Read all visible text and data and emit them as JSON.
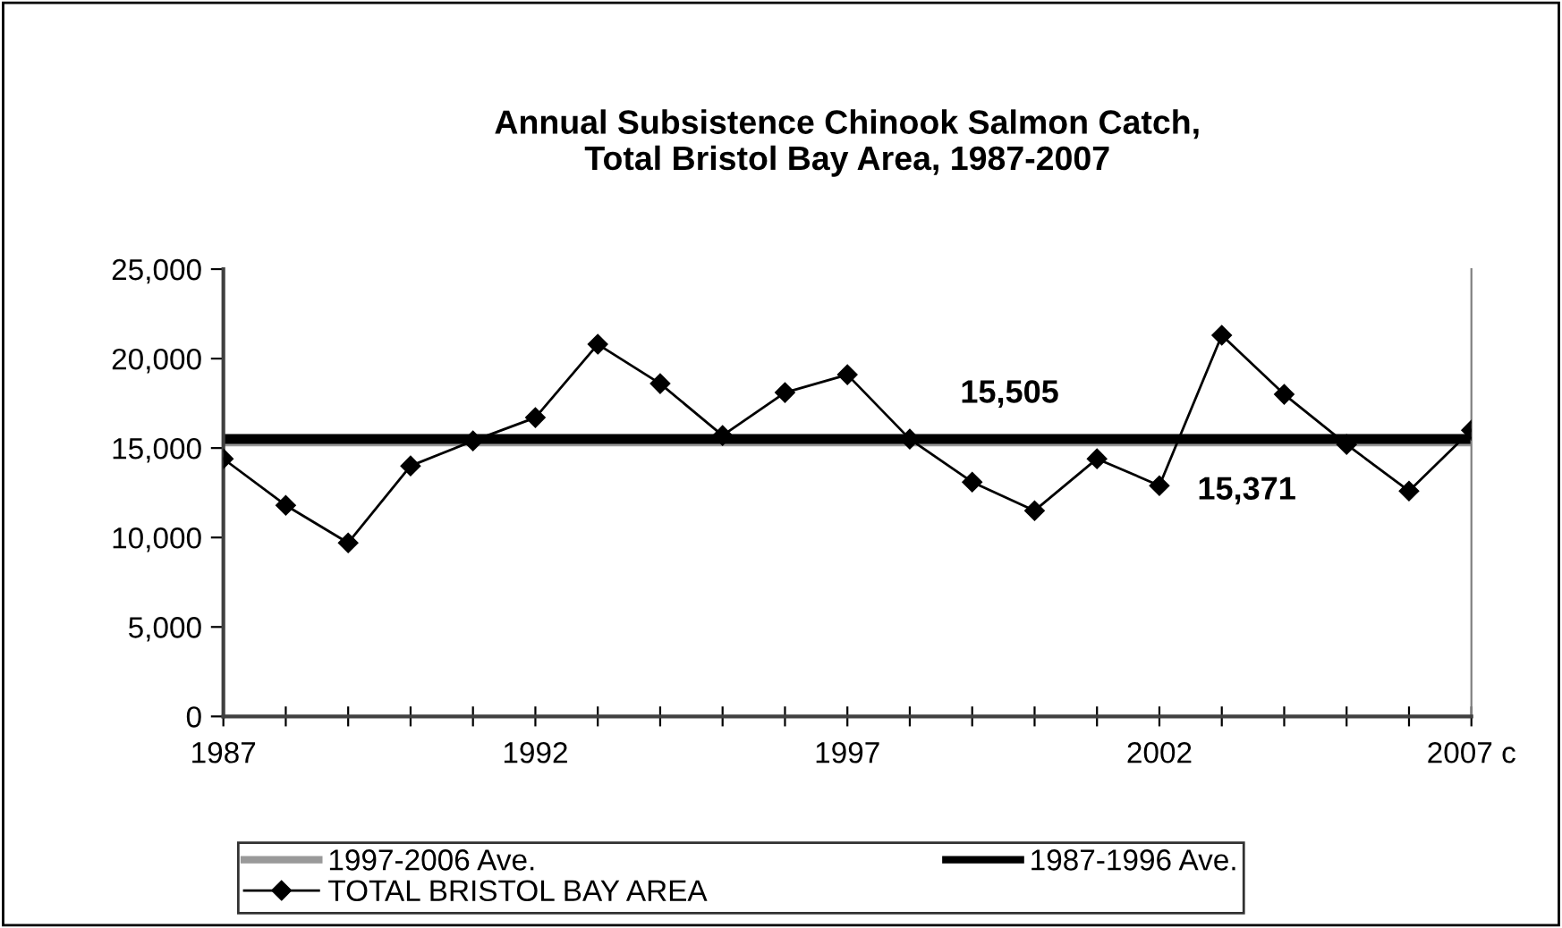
{
  "chart_data": {
    "type": "line",
    "title": "Annual Subsistence Chinook Salmon Catch,\nTotal Bristol Bay Area, 1987-2007",
    "x": [
      1987,
      1988,
      1989,
      1990,
      1991,
      1992,
      1993,
      1994,
      1995,
      1996,
      1997,
      1998,
      1999,
      2000,
      2001,
      2002,
      2003,
      2004,
      2005,
      2006,
      2007
    ],
    "series": [
      {
        "name": "TOTAL BRISTOL BAY AREA",
        "color": "#000000",
        "values": [
          14400,
          11800,
          9700,
          14000,
          15400,
          16700,
          20800,
          18600,
          15700,
          18100,
          19100,
          15500,
          13100,
          11500,
          14400,
          12900,
          21300,
          18000,
          15200,
          12600,
          16000
        ]
      }
    ],
    "ref_lines": [
      {
        "axis": "y",
        "value": 15371,
        "label": "1997-2006 Ave.",
        "color": "#999999"
      },
      {
        "axis": "y",
        "value": 15505,
        "label": "1987-1996 Ave.",
        "color": "#000000"
      }
    ],
    "annotations": [
      {
        "text": "15,505",
        "x": 1999.6,
        "y": 15505
      },
      {
        "text": "15,371",
        "x": 2003.4,
        "y": 15371
      }
    ],
    "xlim": [
      1987,
      2007
    ],
    "xticks": [
      1987,
      {
        "value": 1988,
        "label": null
      },
      {
        "value": 1989,
        "label": null
      },
      {
        "value": 1990,
        "label": null
      },
      {
        "value": 1991,
        "label": null
      },
      1992,
      {
        "value": 1993,
        "label": null
      },
      {
        "value": 1994,
        "label": null
      },
      {
        "value": 1995,
        "label": null
      },
      {
        "value": 1996,
        "label": null
      },
      1997,
      {
        "value": 1998,
        "label": null
      },
      {
        "value": 1999,
        "label": null
      },
      {
        "value": 2000,
        "label": null
      },
      {
        "value": 2001,
        "label": null
      },
      2002,
      {
        "value": 2003,
        "label": null
      },
      {
        "value": 2004,
        "label": null
      },
      {
        "value": 2005,
        "label": null
      },
      {
        "value": 2006,
        "label": null
      },
      {
        "value": 2007,
        "label": "2007 c"
      }
    ],
    "ylim": [
      0,
      25000
    ],
    "yticks": [
      {
        "value": 0,
        "label": "0"
      },
      {
        "value": 5000,
        "label": "5,000"
      },
      {
        "value": 10000,
        "label": "10,000"
      },
      {
        "value": 15000,
        "label": "15,000"
      },
      {
        "value": 20000,
        "label": "20,000"
      },
      {
        "value": 25000,
        "label": "25,000"
      }
    ],
    "grid": false,
    "legend": "bottom",
    "marker": "diamond",
    "line_style": "solid"
  }
}
